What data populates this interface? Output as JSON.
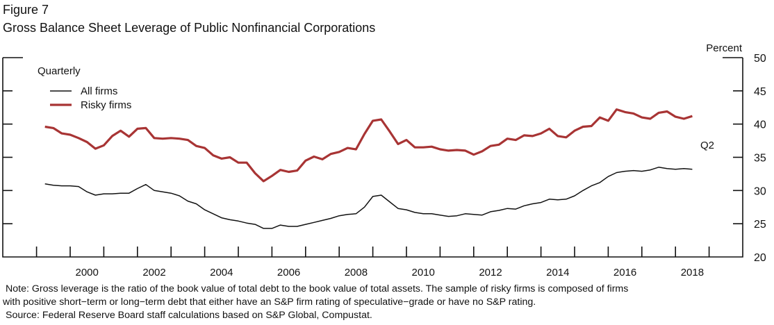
{
  "figure_label": "Figure 7",
  "chart_data": {
    "type": "line",
    "title": "Gross Balance Sheet Leverage of Public Nonfinancial Corporations",
    "frequency_label": "Quarterly",
    "ylabel": "Percent",
    "xlabel": "",
    "ylim": [
      20,
      50
    ],
    "xlim": [
      1998,
      2020
    ],
    "yticks": [
      "20",
      "25",
      "30",
      "35",
      "40",
      "45",
      "50"
    ],
    "xticks": [
      "2000",
      "2002",
      "2004",
      "2006",
      "2008",
      "2010",
      "2012",
      "2014",
      "2016",
      "2018"
    ],
    "start": {
      "year": 1999,
      "quarter": 1
    },
    "end_annotation": "Q2",
    "legend_position": "top-left",
    "series": [
      {
        "name": "All firms",
        "color": "#111111",
        "values": [
          31.0,
          30.8,
          30.7,
          30.7,
          30.6,
          29.8,
          29.3,
          29.5,
          29.5,
          29.6,
          29.6,
          30.3,
          30.9,
          30.0,
          29.8,
          29.6,
          29.2,
          28.4,
          28.0,
          27.1,
          26.5,
          25.9,
          25.6,
          25.4,
          25.1,
          24.9,
          24.3,
          24.3,
          24.8,
          24.6,
          24.6,
          24.9,
          25.2,
          25.5,
          25.8,
          26.2,
          26.4,
          26.5,
          27.5,
          29.1,
          29.3,
          28.3,
          27.3,
          27.1,
          26.7,
          26.5,
          26.5,
          26.3,
          26.1,
          26.2,
          26.5,
          26.4,
          26.3,
          26.8,
          27.0,
          27.3,
          27.2,
          27.7,
          28.0,
          28.2,
          28.7,
          28.6,
          28.7,
          29.2,
          30.0,
          30.7,
          31.2,
          32.1,
          32.7,
          32.9,
          33.0,
          32.9,
          33.1,
          33.5,
          33.3,
          33.2,
          33.3,
          33.2
        ]
      },
      {
        "name": "Risky firms",
        "color": "#a83434",
        "values": [
          39.6,
          39.4,
          38.6,
          38.4,
          37.9,
          37.3,
          36.3,
          36.8,
          38.2,
          39.0,
          38.1,
          39.3,
          39.4,
          37.9,
          37.8,
          37.9,
          37.8,
          37.6,
          36.7,
          36.4,
          35.3,
          34.8,
          35.0,
          34.2,
          34.2,
          32.6,
          31.4,
          32.2,
          33.1,
          32.8,
          33.0,
          34.5,
          35.1,
          34.7,
          35.5,
          35.8,
          36.4,
          36.2,
          38.5,
          40.5,
          40.7,
          38.9,
          37.0,
          37.6,
          36.5,
          36.5,
          36.6,
          36.2,
          36.0,
          36.1,
          36.0,
          35.4,
          35.9,
          36.7,
          36.9,
          37.8,
          37.6,
          38.3,
          38.2,
          38.6,
          39.3,
          38.2,
          38.0,
          39.0,
          39.6,
          39.7,
          41.0,
          40.5,
          42.2,
          41.8,
          41.6,
          41.0,
          40.8,
          41.7,
          41.9,
          41.1,
          40.8,
          41.2
        ]
      }
    ]
  },
  "notes": [
    "Note: Gross leverage is the ratio of the book value of total debt to the book value of total assets. The sample of risky firms is composed of firms",
    "with positive short−term or long−term debt that either have an S&P firm rating of speculative−grade or have no S&P rating.",
    "Source: Federal Reserve Board staff calculations based on S&P Global, Compustat."
  ]
}
